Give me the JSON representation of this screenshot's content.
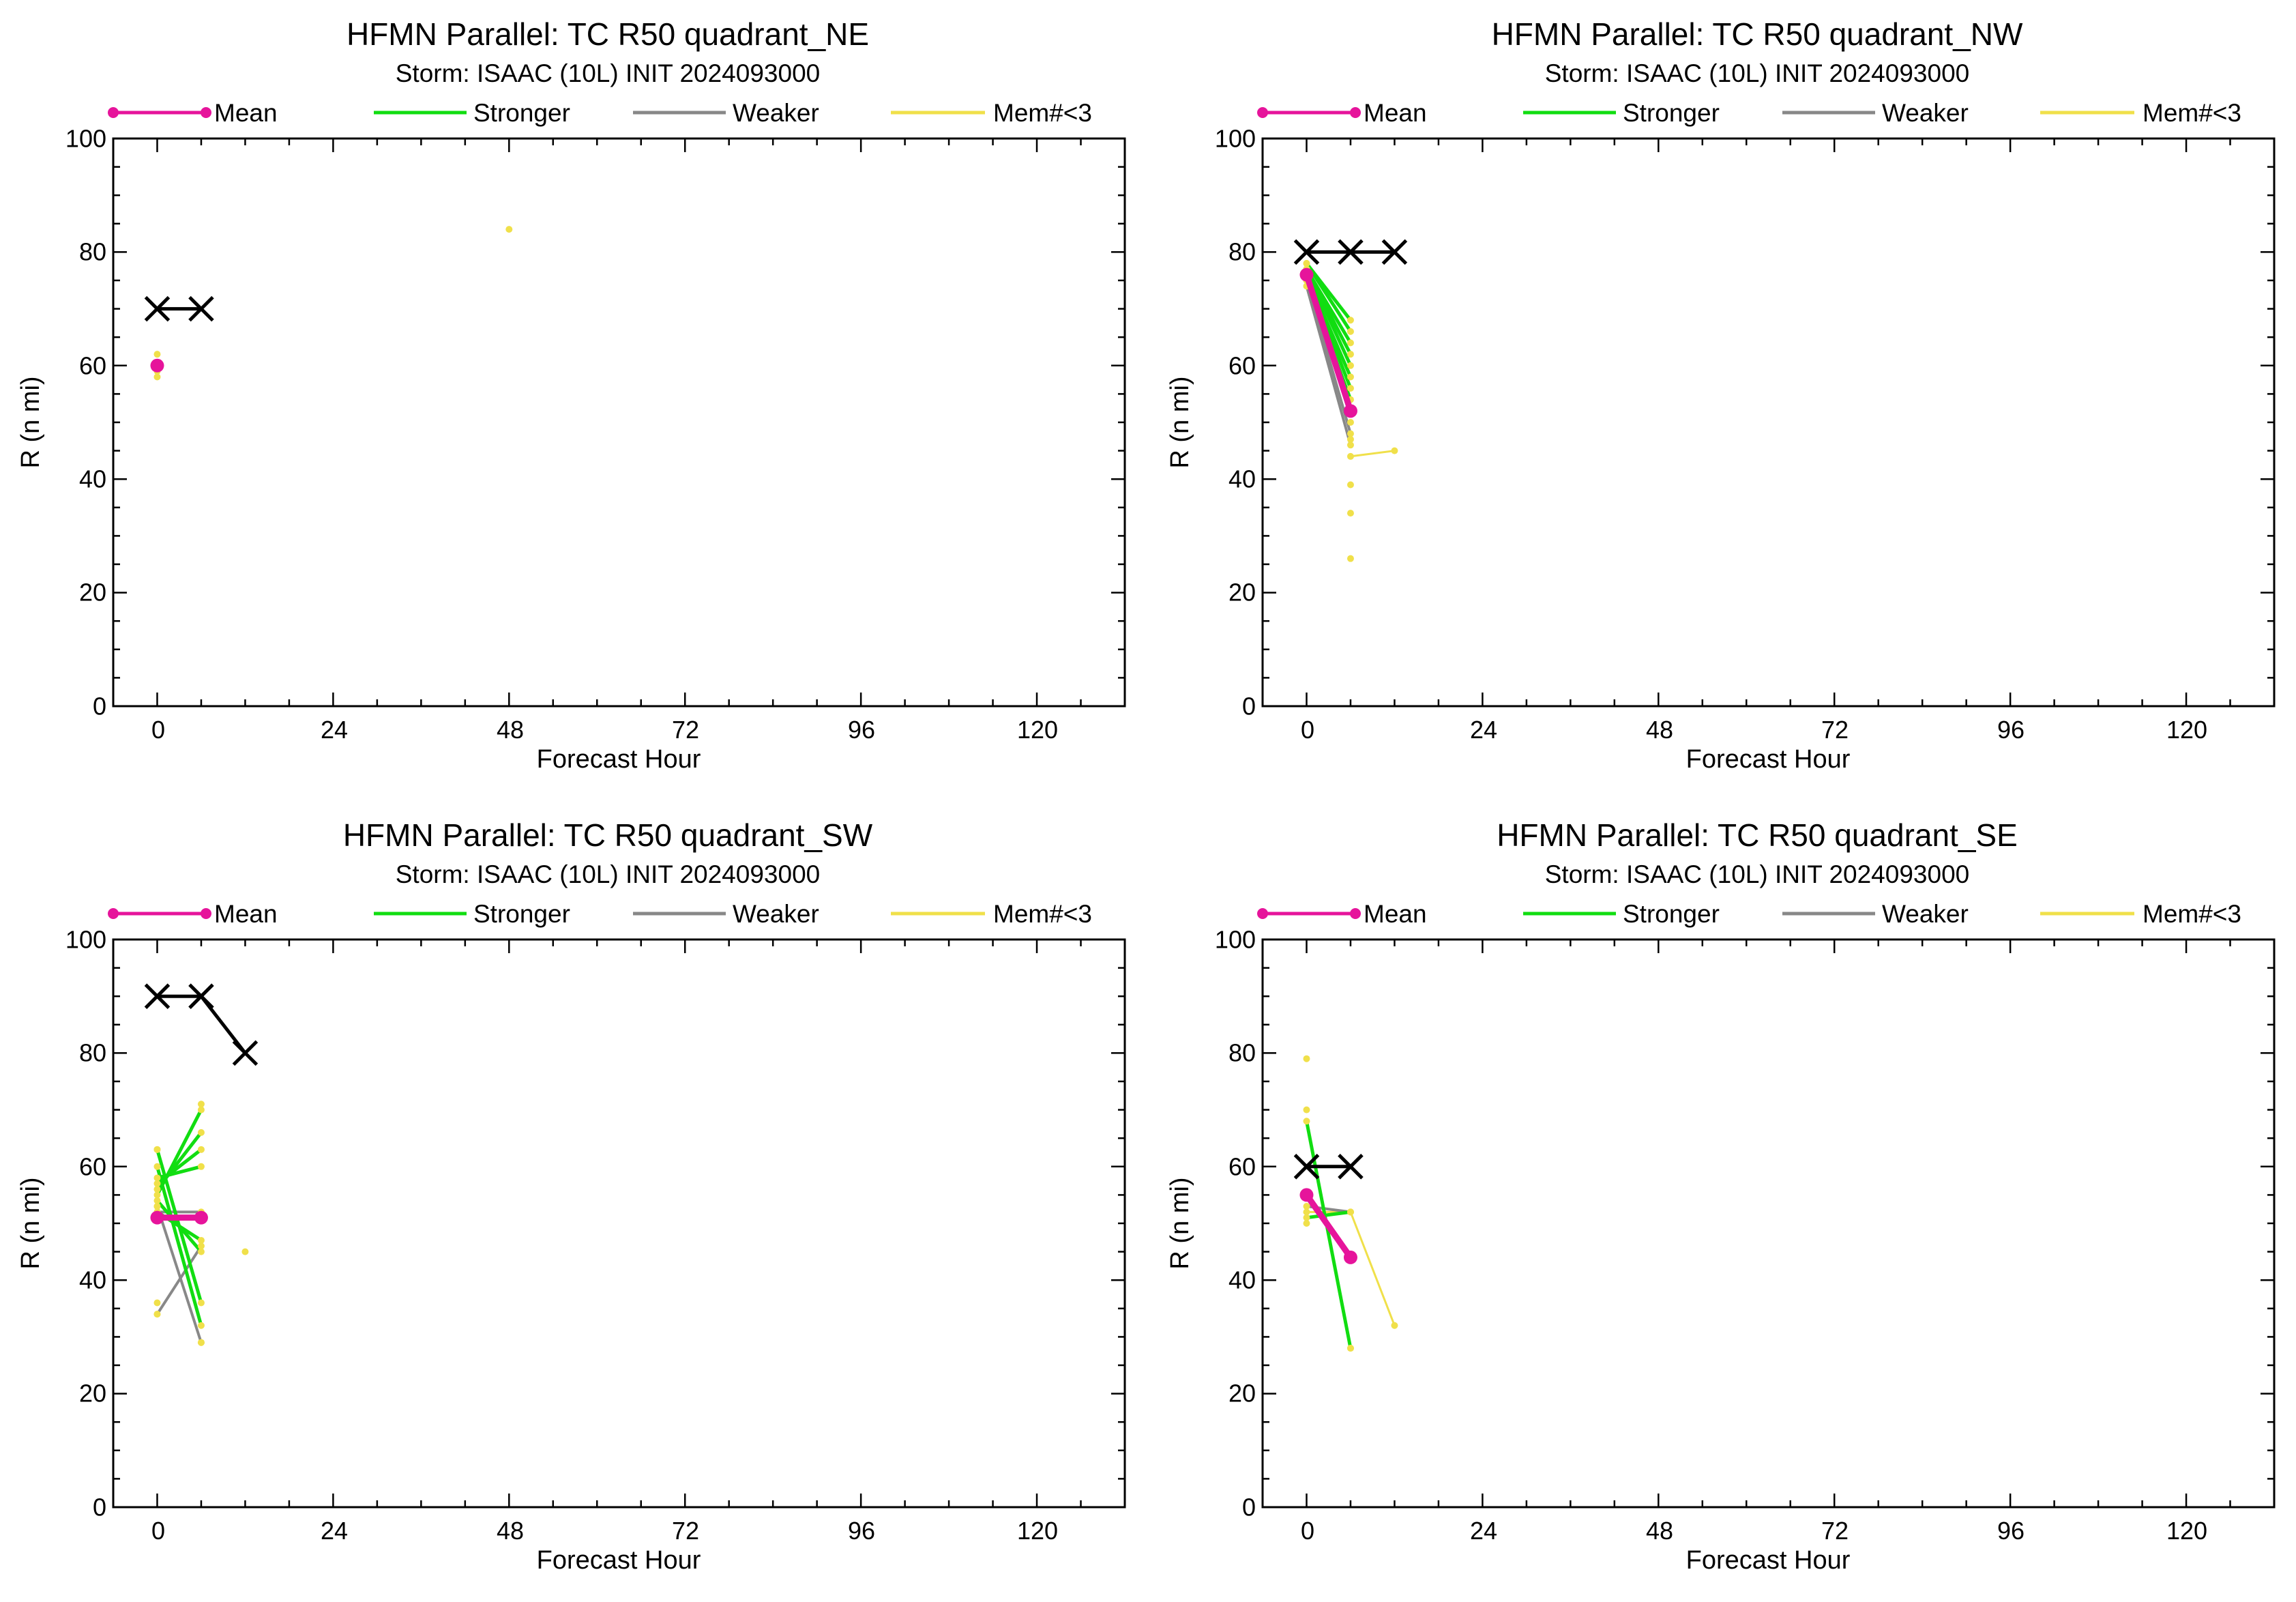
{
  "colors": {
    "mean": "#e6149b",
    "stronger": "#11dd11",
    "weaker": "#888888",
    "mem_lt3": "#f0e04a",
    "best_track": "#000000"
  },
  "chart_data": [
    {
      "type": "line",
      "title": "HFMN Parallel: TC  R50 quadrant_NE",
      "subtitle": "Storm: ISAAC (10L) INIT 2024093000",
      "xlabel": "Forecast Hour",
      "ylabel": "R (n mi)",
      "xlim": [
        -6,
        132
      ],
      "ylim": [
        0,
        100
      ],
      "xticks": [
        "0",
        "24",
        "48",
        "72",
        "96",
        "120"
      ],
      "yticks": [
        "0",
        "20",
        "40",
        "60",
        "80",
        "100"
      ],
      "legend": [
        "Mean",
        "Stronger",
        "Weaker",
        "Mem#<3"
      ],
      "best_track": [
        [
          0,
          70
        ],
        [
          6,
          70
        ]
      ],
      "mean": [
        [
          0,
          60
        ]
      ],
      "stronger": [],
      "weaker": [],
      "mem_lt3": [
        [
          [
            0,
            62
          ]
        ],
        [
          [
            0,
            59
          ]
        ],
        [
          [
            0,
            58
          ]
        ],
        [
          [
            48,
            84
          ]
        ]
      ]
    },
    {
      "type": "line",
      "title": "HFMN Parallel: TC  R50 quadrant_NW",
      "subtitle": "Storm: ISAAC (10L) INIT 2024093000",
      "xlabel": "Forecast Hour",
      "ylabel": "R (n mi)",
      "xlim": [
        -6,
        132
      ],
      "ylim": [
        0,
        100
      ],
      "xticks": [
        "0",
        "24",
        "48",
        "72",
        "96",
        "120"
      ],
      "yticks": [
        "0",
        "20",
        "40",
        "60",
        "80",
        "100"
      ],
      "legend": [
        "Mean",
        "Stronger",
        "Weaker",
        "Mem#<3"
      ],
      "best_track": [
        [
          0,
          80
        ],
        [
          6,
          80
        ],
        [
          12,
          80
        ]
      ],
      "mean": [
        [
          0,
          76
        ],
        [
          6,
          52
        ]
      ],
      "stronger": [
        [
          [
            0,
            78
          ],
          [
            6,
            68
          ]
        ],
        [
          [
            0,
            78
          ],
          [
            6,
            66
          ]
        ],
        [
          [
            0,
            77
          ],
          [
            6,
            64
          ]
        ],
        [
          [
            0,
            77
          ],
          [
            6,
            62
          ]
        ],
        [
          [
            0,
            77
          ],
          [
            6,
            60
          ]
        ],
        [
          [
            0,
            76
          ],
          [
            6,
            58
          ]
        ],
        [
          [
            0,
            76
          ],
          [
            6,
            56
          ]
        ],
        [
          [
            0,
            75
          ],
          [
            6,
            54
          ]
        ]
      ],
      "weaker": [
        [
          [
            0,
            75
          ],
          [
            6,
            48
          ]
        ],
        [
          [
            0,
            74
          ],
          [
            6,
            46
          ]
        ]
      ],
      "mem_lt3": [
        [
          [
            6,
            44
          ],
          [
            12,
            45
          ]
        ],
        [
          [
            6,
            50
          ]
        ],
        [
          [
            6,
            47
          ]
        ],
        [
          [
            6,
            39
          ]
        ],
        [
          [
            6,
            34
          ]
        ],
        [
          [
            6,
            26
          ]
        ]
      ]
    },
    {
      "type": "line",
      "title": "HFMN Parallel: TC  R50 quadrant_SW",
      "subtitle": "Storm: ISAAC (10L) INIT 2024093000",
      "xlabel": "Forecast Hour",
      "ylabel": "R (n mi)",
      "xlim": [
        -6,
        132
      ],
      "ylim": [
        0,
        100
      ],
      "xticks": [
        "0",
        "24",
        "48",
        "72",
        "96",
        "120"
      ],
      "yticks": [
        "0",
        "20",
        "40",
        "60",
        "80",
        "100"
      ],
      "legend": [
        "Mean",
        "Stronger",
        "Weaker",
        "Mem#<3"
      ],
      "best_track": [
        [
          0,
          90
        ],
        [
          6,
          90
        ],
        [
          12,
          80
        ]
      ],
      "mean": [
        [
          0,
          51
        ],
        [
          6,
          51
        ]
      ],
      "stronger": [
        [
          [
            0,
            55
          ],
          [
            6,
            70
          ]
        ],
        [
          [
            0,
            56
          ],
          [
            6,
            66
          ]
        ],
        [
          [
            0,
            57
          ],
          [
            6,
            63
          ]
        ],
        [
          [
            0,
            58
          ],
          [
            6,
            60
          ]
        ],
        [
          [
            0,
            63
          ],
          [
            6,
            36
          ]
        ],
        [
          [
            0,
            60
          ],
          [
            6,
            32
          ]
        ],
        [
          [
            0,
            54
          ],
          [
            6,
            45
          ]
        ],
        [
          [
            0,
            52
          ],
          [
            6,
            47
          ]
        ]
      ],
      "weaker": [
        [
          [
            0,
            52
          ],
          [
            6,
            52
          ]
        ],
        [
          [
            0,
            34
          ],
          [
            6,
            46
          ]
        ],
        [
          [
            0,
            53
          ],
          [
            6,
            29
          ]
        ]
      ],
      "mem_lt3": [
        [
          [
            0,
            63
          ]
        ],
        [
          [
            0,
            36
          ]
        ],
        [
          [
            0,
            34
          ]
        ],
        [
          [
            0,
            53
          ]
        ],
        [
          [
            6,
            71
          ]
        ],
        [
          [
            6,
            51
          ]
        ],
        [
          [
            6,
            29
          ]
        ],
        [
          [
            12,
            45
          ]
        ]
      ]
    },
    {
      "type": "line",
      "title": "HFMN Parallel: TC  R50 quadrant_SE",
      "subtitle": "Storm: ISAAC (10L) INIT 2024093000",
      "xlabel": "Forecast Hour",
      "ylabel": "R (n mi)",
      "xlim": [
        -6,
        132
      ],
      "ylim": [
        0,
        100
      ],
      "xticks": [
        "0",
        "24",
        "48",
        "72",
        "96",
        "120"
      ],
      "yticks": [
        "0",
        "20",
        "40",
        "60",
        "80",
        "100"
      ],
      "legend": [
        "Mean",
        "Stronger",
        "Weaker",
        "Mem#<3"
      ],
      "best_track": [
        [
          0,
          60
        ],
        [
          6,
          60
        ]
      ],
      "mean": [
        [
          0,
          55
        ],
        [
          6,
          44
        ]
      ],
      "stronger": [
        [
          [
            0,
            68
          ],
          [
            6,
            28
          ]
        ],
        [
          [
            0,
            51
          ],
          [
            6,
            52
          ]
        ]
      ],
      "weaker": [
        [
          [
            0,
            53
          ],
          [
            6,
            52
          ]
        ]
      ],
      "mem_lt3": [
        [
          [
            0,
            52
          ],
          [
            6,
            52
          ],
          [
            12,
            32
          ]
        ],
        [
          [
            0,
            79
          ]
        ],
        [
          [
            0,
            70
          ]
        ],
        [
          [
            0,
            50
          ]
        ],
        [
          [
            6,
            28
          ]
        ]
      ]
    }
  ]
}
